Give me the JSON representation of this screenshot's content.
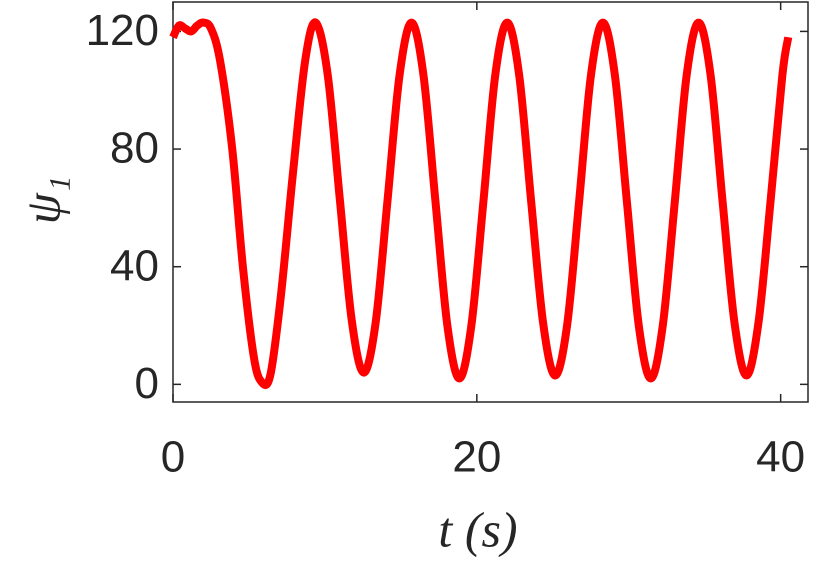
{
  "chart_data": {
    "type": "line",
    "xlabel": "t  (s)",
    "ylabel": "ψ₁",
    "xlim": [
      0,
      41.8
    ],
    "ylim": [
      -6,
      130
    ],
    "xticks": [
      0,
      20,
      40
    ],
    "yticks": [
      0,
      40,
      80,
      120
    ],
    "series": [
      {
        "color": "#ff0000",
        "x": [
          0,
          0.4,
          0.8,
          1.2,
          1.6,
          2.0,
          2.5,
          3.1,
          3.9,
          4.6,
          5.3,
          5.8,
          6.4,
          7.1,
          7.9,
          8.7,
          9.4,
          10.19,
          10.98,
          11.76,
          12.55,
          13.34,
          14.13,
          14.91,
          15.7,
          16.49,
          17.28,
          18.06,
          18.85,
          19.64,
          20.43,
          21.21,
          22.0,
          22.79,
          23.58,
          24.36,
          25.15,
          25.94,
          26.73,
          27.51,
          28.3,
          29.09,
          29.88,
          30.66,
          31.45,
          32.24,
          33.03,
          33.81,
          34.6,
          35.39,
          36.18,
          36.96,
          37.75,
          38.54,
          39.33,
          40.11,
          40.5
        ],
        "values": [
          118,
          122,
          121,
          120,
          122,
          123,
          121,
          110,
          80,
          40,
          10,
          1,
          3,
          30,
          72,
          110,
          123,
          105,
          63,
          22,
          4,
          21,
          63,
          105,
          123,
          105,
          62,
          20,
          2,
          20,
          62,
          105,
          123,
          105,
          62,
          21,
          3,
          20,
          62,
          105,
          123,
          105,
          62,
          20,
          2,
          20,
          62,
          105,
          123,
          105,
          62,
          21,
          3,
          21,
          62,
          105,
          118
        ]
      }
    ]
  }
}
